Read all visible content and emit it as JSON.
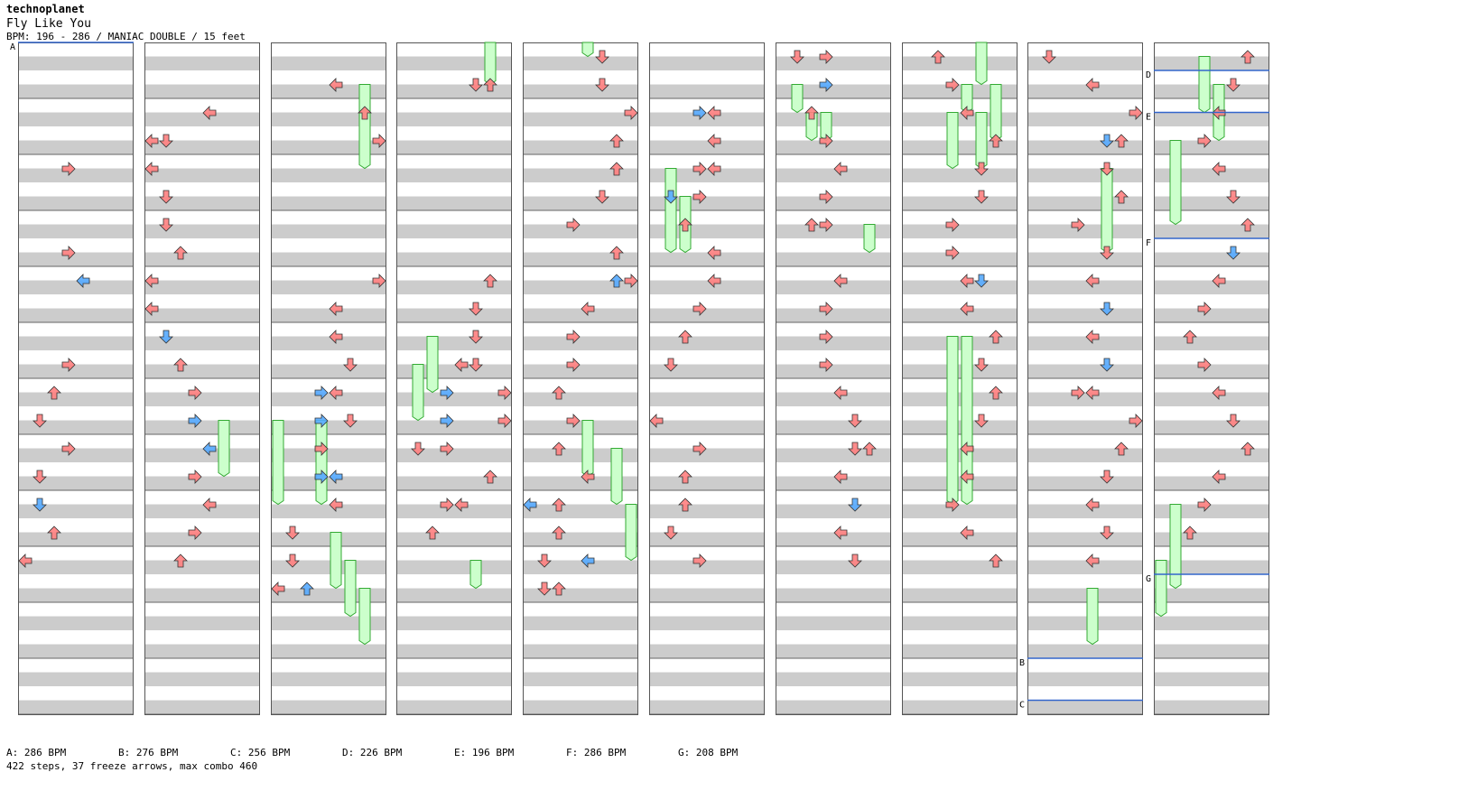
{
  "header": {
    "artist": "technoplanet",
    "title": "Fly Like You",
    "meta": "BPM: 196 - 286 / MANIAC DOUBLE / 15 feet"
  },
  "colors": {
    "note_red": "#ff8080",
    "note_blue": "#55aaff",
    "note_green": "#44dd44",
    "note_pink": "#ff99ff",
    "freeze_body": "#ccffcc",
    "freeze_border": "#33aa33",
    "stripe_gray": "#cccccc",
    "bpm_line": "#3366cc"
  },
  "chart": {
    "columns": 10,
    "lanes": 8,
    "freeze_arrow_count": 37,
    "step_count": 422,
    "columns_notes": [
      [
        [
          3,
          4,
          "r"
        ],
        [
          3,
          7,
          "r"
        ],
        [
          4,
          8,
          "b"
        ],
        [
          3,
          11,
          "r"
        ],
        [
          2,
          12,
          "r"
        ],
        [
          1,
          13,
          "r"
        ],
        [
          3,
          14,
          "r"
        ],
        [
          1,
          15,
          "r"
        ],
        [
          1,
          16,
          "b"
        ],
        [
          2,
          17,
          "r"
        ],
        [
          0,
          18,
          "r"
        ]
      ],
      [
        [
          4,
          2,
          "r"
        ],
        [
          1,
          3,
          "r"
        ],
        [
          0,
          3,
          "r"
        ],
        [
          0,
          4,
          "r"
        ],
        [
          1,
          5,
          "r"
        ],
        [
          1,
          6,
          "r"
        ],
        [
          2,
          7,
          "r"
        ],
        [
          0,
          8,
          "r"
        ],
        [
          0,
          9,
          "r"
        ],
        [
          1,
          10,
          "b"
        ],
        [
          2,
          11,
          "r"
        ],
        [
          3,
          12,
          "r"
        ],
        [
          3,
          13,
          "b"
        ],
        [
          4,
          14,
          "b"
        ],
        [
          3,
          15,
          "r"
        ],
        [
          4,
          16,
          "r"
        ],
        [
          3,
          17,
          "r"
        ],
        [
          2,
          18,
          "r"
        ]
      ],
      [
        [
          4,
          1,
          "r"
        ],
        [
          6,
          2,
          "r"
        ],
        [
          7,
          3,
          "r"
        ],
        [
          7,
          8,
          "r"
        ],
        [
          4,
          9,
          "r"
        ],
        [
          4,
          10,
          "r"
        ],
        [
          5,
          11,
          "r"
        ],
        [
          3,
          12,
          "b"
        ],
        [
          4,
          12,
          "r"
        ],
        [
          3,
          13,
          "b"
        ],
        [
          5,
          13,
          "r"
        ],
        [
          3,
          14,
          "r"
        ],
        [
          3,
          15,
          "b"
        ],
        [
          4,
          15,
          "b"
        ],
        [
          4,
          16,
          "r"
        ],
        [
          1,
          17,
          "r"
        ],
        [
          1,
          18,
          "r"
        ],
        [
          0,
          19,
          "r"
        ],
        [
          2,
          19,
          "b"
        ]
      ],
      [
        [
          5,
          1,
          "r"
        ],
        [
          6,
          1,
          "r"
        ],
        [
          6,
          8,
          "r"
        ],
        [
          5,
          9,
          "r"
        ],
        [
          5,
          10,
          "r"
        ],
        [
          4,
          11,
          "r"
        ],
        [
          5,
          11,
          "r"
        ],
        [
          3,
          12,
          "b"
        ],
        [
          7,
          12,
          "r"
        ],
        [
          3,
          13,
          "b"
        ],
        [
          7,
          13,
          "r"
        ],
        [
          1,
          14,
          "r"
        ],
        [
          3,
          14,
          "r"
        ],
        [
          6,
          15,
          "r"
        ],
        [
          3,
          16,
          "r"
        ],
        [
          4,
          16,
          "r"
        ],
        [
          2,
          17,
          "r"
        ]
      ],
      [
        [
          5,
          0,
          "r"
        ],
        [
          5,
          1,
          "r"
        ],
        [
          7,
          2,
          "r"
        ],
        [
          6,
          3,
          "r"
        ],
        [
          6,
          4,
          "r"
        ],
        [
          5,
          5,
          "r"
        ],
        [
          3,
          6,
          "r"
        ],
        [
          6,
          7,
          "r"
        ],
        [
          6,
          8,
          "b"
        ],
        [
          7,
          8,
          "r"
        ],
        [
          4,
          9,
          "r"
        ],
        [
          3,
          10,
          "r"
        ],
        [
          3,
          11,
          "r"
        ],
        [
          2,
          12,
          "r"
        ],
        [
          3,
          13,
          "r"
        ],
        [
          2,
          14,
          "r"
        ],
        [
          4,
          15,
          "r"
        ],
        [
          0,
          16,
          "b"
        ],
        [
          2,
          16,
          "r"
        ],
        [
          2,
          17,
          "r"
        ],
        [
          1,
          18,
          "r"
        ],
        [
          4,
          18,
          "b"
        ],
        [
          1,
          19,
          "r"
        ],
        [
          2,
          19,
          "r"
        ]
      ],
      [
        [
          3,
          2,
          "b"
        ],
        [
          4,
          2,
          "r"
        ],
        [
          4,
          3,
          "r"
        ],
        [
          3,
          4,
          "r"
        ],
        [
          4,
          4,
          "r"
        ],
        [
          1,
          5,
          "b"
        ],
        [
          3,
          5,
          "r"
        ],
        [
          2,
          6,
          "r"
        ],
        [
          4,
          7,
          "r"
        ],
        [
          4,
          8,
          "r"
        ],
        [
          3,
          9,
          "r"
        ],
        [
          2,
          10,
          "r"
        ],
        [
          1,
          11,
          "r"
        ],
        [
          0,
          13,
          "r"
        ],
        [
          3,
          14,
          "r"
        ],
        [
          2,
          15,
          "r"
        ],
        [
          2,
          16,
          "r"
        ],
        [
          1,
          17,
          "r"
        ],
        [
          3,
          18,
          "r"
        ]
      ],
      [
        [
          1,
          0,
          "r"
        ],
        [
          3,
          0,
          "r"
        ],
        [
          3,
          1,
          "b"
        ],
        [
          2,
          2,
          "r"
        ],
        [
          3,
          3,
          "r"
        ],
        [
          4,
          4,
          "r"
        ],
        [
          3,
          5,
          "r"
        ],
        [
          2,
          6,
          "r"
        ],
        [
          3,
          6,
          "r"
        ],
        [
          4,
          8,
          "r"
        ],
        [
          3,
          9,
          "r"
        ],
        [
          3,
          10,
          "r"
        ],
        [
          3,
          11,
          "r"
        ],
        [
          4,
          12,
          "r"
        ],
        [
          5,
          13,
          "r"
        ],
        [
          6,
          14,
          "r"
        ],
        [
          5,
          14,
          "r"
        ],
        [
          4,
          15,
          "r"
        ],
        [
          5,
          16,
          "b"
        ],
        [
          4,
          17,
          "r"
        ],
        [
          5,
          18,
          "r"
        ]
      ],
      [
        [
          2,
          0,
          "r"
        ],
        [
          3,
          1,
          "r"
        ],
        [
          4,
          2,
          "r"
        ],
        [
          6,
          3,
          "r"
        ],
        [
          5,
          4,
          "r"
        ],
        [
          5,
          5,
          "r"
        ],
        [
          3,
          6,
          "r"
        ],
        [
          3,
          7,
          "r"
        ],
        [
          5,
          8,
          "b"
        ],
        [
          4,
          8,
          "r"
        ],
        [
          4,
          9,
          "r"
        ],
        [
          6,
          10,
          "r"
        ],
        [
          5,
          11,
          "r"
        ],
        [
          6,
          12,
          "r"
        ],
        [
          5,
          13,
          "r"
        ],
        [
          4,
          14,
          "r"
        ],
        [
          4,
          15,
          "r"
        ],
        [
          3,
          16,
          "r"
        ],
        [
          4,
          17,
          "r"
        ],
        [
          6,
          18,
          "r"
        ]
      ],
      [
        [
          1,
          0,
          "r"
        ],
        [
          4,
          1,
          "r"
        ],
        [
          7,
          2,
          "r"
        ],
        [
          5,
          3,
          "b"
        ],
        [
          6,
          3,
          "r"
        ],
        [
          5,
          4,
          "r"
        ],
        [
          6,
          5,
          "r"
        ],
        [
          3,
          6,
          "r"
        ],
        [
          5,
          7,
          "r"
        ],
        [
          4,
          8,
          "r"
        ],
        [
          5,
          9,
          "b"
        ],
        [
          4,
          10,
          "r"
        ],
        [
          5,
          11,
          "b"
        ],
        [
          3,
          12,
          "r"
        ],
        [
          4,
          12,
          "r"
        ],
        [
          7,
          13,
          "r"
        ],
        [
          6,
          14,
          "r"
        ],
        [
          5,
          15,
          "r"
        ],
        [
          4,
          16,
          "r"
        ],
        [
          5,
          17,
          "r"
        ],
        [
          4,
          18,
          "r"
        ]
      ],
      [
        [
          6,
          0,
          "r"
        ],
        [
          5,
          1,
          "r"
        ],
        [
          4,
          2,
          "r"
        ],
        [
          3,
          3,
          "r"
        ],
        [
          4,
          4,
          "r"
        ],
        [
          5,
          5,
          "r"
        ],
        [
          6,
          6,
          "r"
        ],
        [
          5,
          7,
          "b"
        ],
        [
          4,
          8,
          "r"
        ],
        [
          3,
          9,
          "r"
        ],
        [
          2,
          10,
          "r"
        ],
        [
          3,
          11,
          "r"
        ],
        [
          4,
          12,
          "r"
        ],
        [
          5,
          13,
          "r"
        ],
        [
          6,
          14,
          "r"
        ],
        [
          4,
          15,
          "r"
        ],
        [
          3,
          16,
          "r"
        ],
        [
          2,
          17,
          "r"
        ]
      ]
    ],
    "columns_freezes": [
      [],
      [
        [
          5,
          13,
          15
        ]
      ],
      [
        [
          6,
          1,
          4
        ],
        [
          0,
          13,
          16
        ],
        [
          3,
          13,
          16
        ],
        [
          4,
          17,
          19
        ],
        [
          5,
          18,
          20
        ],
        [
          6,
          19,
          21
        ]
      ],
      [
        [
          6,
          -1,
          1
        ],
        [
          2,
          10,
          12
        ],
        [
          1,
          11,
          13
        ],
        [
          5,
          18,
          19
        ]
      ],
      [
        [
          4,
          -1,
          0
        ],
        [
          4,
          13,
          15
        ],
        [
          6,
          14,
          16
        ],
        [
          7,
          16,
          18
        ]
      ],
      [
        [
          1,
          4,
          7
        ],
        [
          2,
          5,
          7
        ]
      ],
      [
        [
          1,
          1,
          2
        ],
        [
          2,
          2,
          3
        ],
        [
          3,
          2,
          3
        ],
        [
          6,
          6,
          7
        ]
      ],
      [
        [
          5,
          -1,
          1
        ],
        [
          4,
          1,
          2
        ],
        [
          6,
          2,
          3
        ],
        [
          5,
          2,
          4
        ],
        [
          3,
          2,
          4
        ],
        [
          6,
          1,
          3
        ],
        [
          3,
          10,
          16
        ],
        [
          4,
          10,
          16
        ]
      ],
      [
        [
          5,
          4,
          7
        ],
        [
          4,
          19,
          21
        ]
      ],
      [
        [
          3,
          0,
          2
        ],
        [
          4,
          1,
          3
        ],
        [
          1,
          3,
          6
        ],
        [
          1,
          16,
          19
        ],
        [
          0,
          18,
          20
        ]
      ]
    ]
  },
  "bpm_markers": [
    {
      "label": "A",
      "column": 0,
      "beat": 0
    },
    {
      "label": "B",
      "column": 8,
      "beat": 22
    },
    {
      "label": "C",
      "column": 8,
      "beat": 23.5
    },
    {
      "label": "D",
      "column": 9,
      "beat": 1
    },
    {
      "label": "E",
      "column": 9,
      "beat": 2.5
    },
    {
      "label": "F",
      "column": 9,
      "beat": 7
    },
    {
      "label": "G",
      "column": 9,
      "beat": 19
    }
  ],
  "bpm_legend": [
    "A: 286 BPM",
    "B: 276 BPM",
    "C: 256 BPM",
    "D: 226 BPM",
    "E: 196 BPM",
    "F: 286 BPM",
    "G: 208 BPM"
  ],
  "footer": {
    "summary": "422 steps, 37 freeze arrows, max combo 460"
  }
}
